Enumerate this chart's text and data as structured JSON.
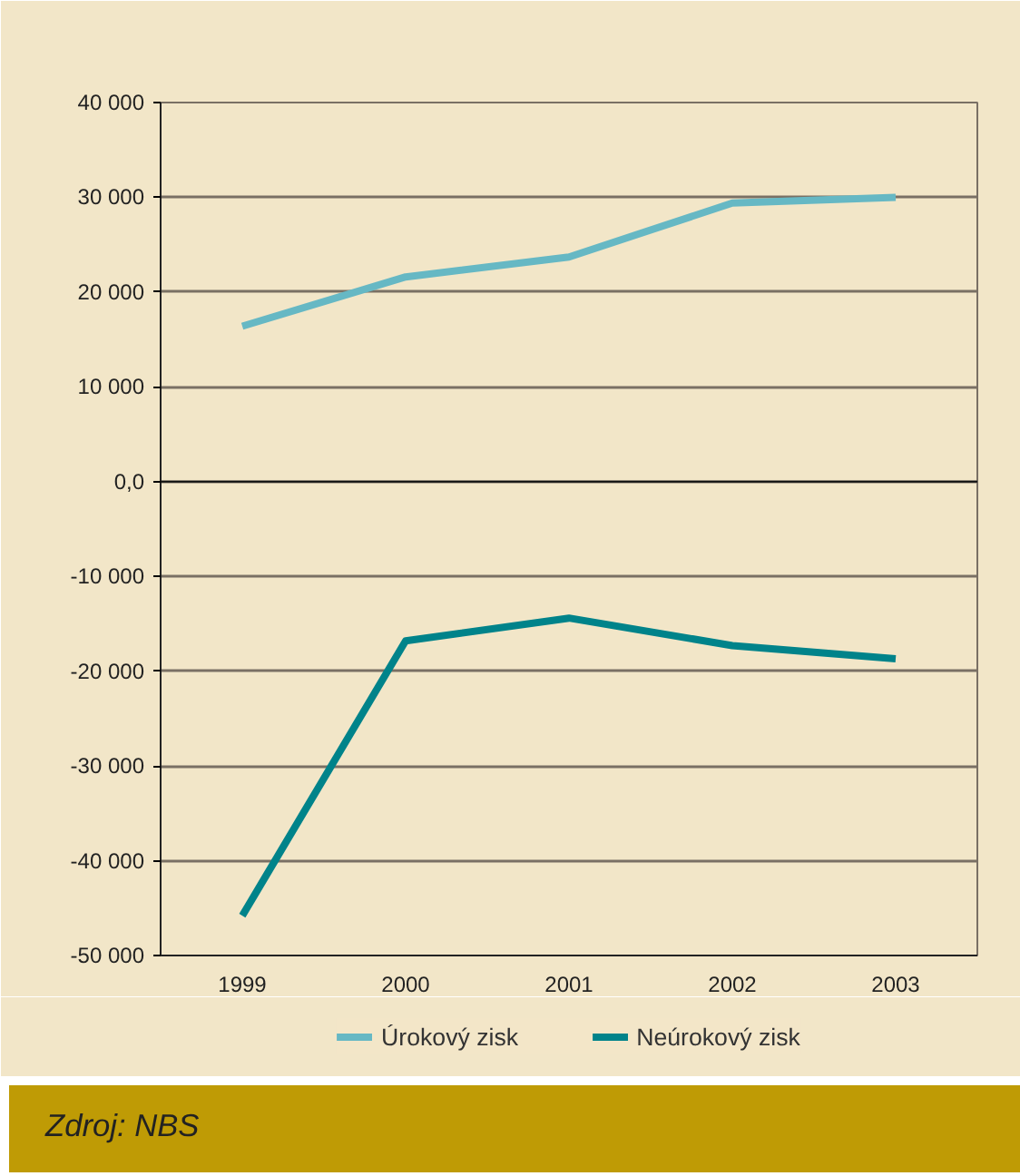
{
  "chart_data": {
    "type": "line",
    "categories": [
      "1999",
      "2000",
      "2001",
      "2002",
      "2003"
    ],
    "series": [
      {
        "name": "Úrokový zisk",
        "color": "#66b8c4",
        "values": [
          16400,
          21600,
          23700,
          29400,
          30000
        ]
      },
      {
        "name": "Neúrokový zisk",
        "color": "#00838a",
        "values": [
          -45800,
          -16800,
          -14400,
          -17300,
          -18700
        ]
      }
    ],
    "ylim": [
      -50000,
      40000
    ],
    "yticks": [
      {
        "value": -50000,
        "label": "-50 000"
      },
      {
        "value": -40000,
        "label": "-40 000"
      },
      {
        "value": -30000,
        "label": "-30 000"
      },
      {
        "value": -20000,
        "label": "-20 000"
      },
      {
        "value": -10000,
        "label": "-10 000"
      },
      {
        "value": 0,
        "label": "0,0"
      },
      {
        "value": 10000,
        "label": "10 000"
      },
      {
        "value": 20000,
        "label": "20 000"
      },
      {
        "value": 30000,
        "label": "30 000"
      },
      {
        "value": 40000,
        "label": "40 000"
      }
    ],
    "grid": "y",
    "legend": "bottom",
    "marker": "none",
    "line_style": "solid",
    "annotations": [
      "Zdroj: NBS"
    ]
  }
}
